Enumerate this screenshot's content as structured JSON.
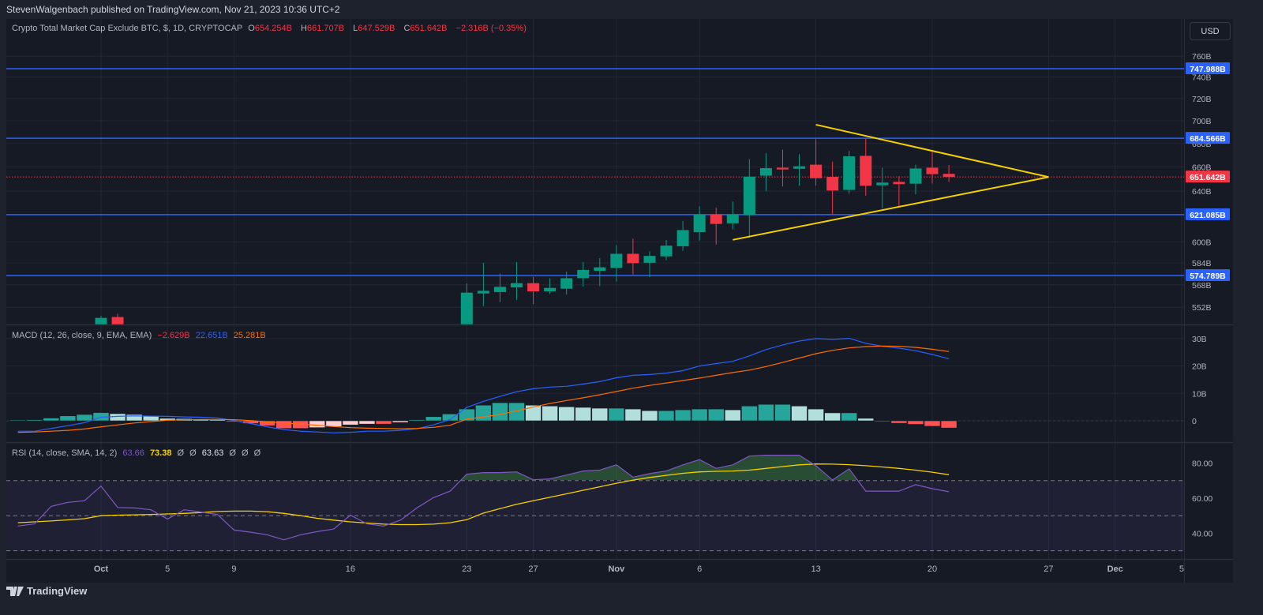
{
  "header": {
    "published": "StevenWalgenbach published on TradingView.com, Nov 21, 2023 10:36 UTC+2"
  },
  "symbol_legend": {
    "title": "Crypto Total Market Cap Exclude BTC, $, 1D, CRYPTOCAP",
    "o_label": "O",
    "o_value": "654.254B",
    "h_label": "H",
    "h_value": "661.707B",
    "l_label": "L",
    "l_value": "647.529B",
    "c_label": "C",
    "c_value": "651.642B",
    "change": "−2.316B (−0.35%)"
  },
  "currency_button": "USD",
  "macd_legend": {
    "title": "MACD (12, 26, close, 9, EMA, EMA)",
    "hist": "−2.629B",
    "macd": "22.651B",
    "signal": "25.281B"
  },
  "rsi_legend": {
    "title": "RSI (14, close, SMA, 14, 2)",
    "rsi": "63.66",
    "sma": "73.38",
    "n1": "Ø",
    "n2": "Ø",
    "extra": "63.63",
    "n3": "Ø",
    "n4": "Ø",
    "n5": "Ø"
  },
  "colors": {
    "up": "#089981",
    "down": "#f23645",
    "level": "#2962ff",
    "trend": "#f5d000",
    "macd": "#2962ff",
    "signal": "#ff6d00",
    "rsi": "#7e57c2",
    "rsi_sma": "#f5d000"
  },
  "logo_text": "TradingView",
  "chart_data": {
    "type": "candlestick",
    "price_axis": {
      "scale": "log",
      "ticks": [
        "760B",
        "740B",
        "720B",
        "700B",
        "680B",
        "660B",
        "640B",
        "600B",
        "584B",
        "568B",
        "552B"
      ],
      "tick_values": [
        760,
        740,
        720,
        700,
        680,
        660,
        640,
        600,
        584,
        568,
        552
      ]
    },
    "time_axis": {
      "ticks": [
        {
          "label": "Oct",
          "date": "2023-10-01"
        },
        {
          "label": "5",
          "date": "2023-10-05"
        },
        {
          "label": "9",
          "date": "2023-10-09"
        },
        {
          "label": "16",
          "date": "2023-10-16"
        },
        {
          "label": "23",
          "date": "2023-10-23"
        },
        {
          "label": "27",
          "date": "2023-10-27"
        },
        {
          "label": "Nov",
          "date": "2023-11-01"
        },
        {
          "label": "6",
          "date": "2023-11-06"
        },
        {
          "label": "13",
          "date": "2023-11-13"
        },
        {
          "label": "20",
          "date": "2023-11-20"
        },
        {
          "label": "27",
          "date": "2023-11-27"
        },
        {
          "label": "Dec",
          "date": "2023-12-01"
        },
        {
          "label": "5",
          "date": "2023-12-05"
        }
      ]
    },
    "candles": [
      {
        "date": "2023-10-01",
        "o": 540,
        "h": 546,
        "l": 535,
        "c": 544.6
      },
      {
        "date": "2023-10-02",
        "o": 545.2,
        "h": 547.5,
        "l": 530,
        "c": 538
      },
      {
        "date": "2023-10-23",
        "o": 530,
        "h": 569,
        "l": 525,
        "c": 562.4
      },
      {
        "date": "2023-10-24",
        "o": 561.8,
        "h": 584.2,
        "l": 552.9,
        "c": 563.7
      },
      {
        "date": "2023-10-25",
        "o": 562.8,
        "h": 576.3,
        "l": 555.7,
        "c": 566.6
      },
      {
        "date": "2023-10-26",
        "o": 566.2,
        "h": 584.8,
        "l": 557.3,
        "c": 569.2
      },
      {
        "date": "2023-10-27",
        "o": 569.2,
        "h": 573.8,
        "l": 554.2,
        "c": 563.3
      },
      {
        "date": "2023-10-28",
        "o": 563.3,
        "h": 572.8,
        "l": 561.4,
        "c": 565.8
      },
      {
        "date": "2023-10-29",
        "o": 565.2,
        "h": 577.6,
        "l": 561.0,
        "c": 572.8
      },
      {
        "date": "2023-10-30",
        "o": 572.8,
        "h": 584.8,
        "l": 566.8,
        "c": 578.9
      },
      {
        "date": "2023-10-31",
        "o": 578.2,
        "h": 587.6,
        "l": 567.1,
        "c": 580.8
      },
      {
        "date": "2023-11-01",
        "o": 580.4,
        "h": 597.5,
        "l": 570.4,
        "c": 590.9
      },
      {
        "date": "2023-11-02",
        "o": 590.9,
        "h": 602.4,
        "l": 575.5,
        "c": 583.9
      },
      {
        "date": "2023-11-03",
        "o": 584.2,
        "h": 592.8,
        "l": 573.6,
        "c": 589.3
      },
      {
        "date": "2023-11-04",
        "o": 589.0,
        "h": 601.4,
        "l": 586.1,
        "c": 597.1
      },
      {
        "date": "2023-11-05",
        "o": 596.6,
        "h": 616.0,
        "l": 593.1,
        "c": 609.0
      },
      {
        "date": "2023-11-06",
        "o": 607.4,
        "h": 627.7,
        "l": 601.0,
        "c": 621.3
      },
      {
        "date": "2023-11-07",
        "o": 621.3,
        "h": 626.6,
        "l": 598.0,
        "c": 613.8
      },
      {
        "date": "2023-11-08",
        "o": 614.3,
        "h": 631.6,
        "l": 609.6,
        "c": 621.3
      },
      {
        "date": "2023-11-09",
        "o": 620.7,
        "h": 666.6,
        "l": 603.2,
        "c": 651.9
      },
      {
        "date": "2023-11-10",
        "o": 652.7,
        "h": 671.5,
        "l": 639.9,
        "c": 659.0
      },
      {
        "date": "2023-11-11",
        "o": 659.4,
        "h": 674.7,
        "l": 643.8,
        "c": 657.9
      },
      {
        "date": "2023-11-12",
        "o": 658.5,
        "h": 670.9,
        "l": 644.4,
        "c": 660.6
      },
      {
        "date": "2023-11-13",
        "o": 661.9,
        "h": 683.7,
        "l": 644.4,
        "c": 650.6
      },
      {
        "date": "2023-11-14",
        "o": 651.7,
        "h": 664.5,
        "l": 621.3,
        "c": 640.5
      },
      {
        "date": "2023-11-15",
        "o": 641.0,
        "h": 673.7,
        "l": 638.0,
        "c": 669.0
      },
      {
        "date": "2023-11-16",
        "o": 669.4,
        "h": 684.1,
        "l": 636.3,
        "c": 644.4
      },
      {
        "date": "2023-11-17",
        "o": 644.8,
        "h": 659.4,
        "l": 626.0,
        "c": 647.0
      },
      {
        "date": "2023-11-18",
        "o": 647.6,
        "h": 652.3,
        "l": 627.3,
        "c": 645.7
      },
      {
        "date": "2023-11-19",
        "o": 646.1,
        "h": 661.9,
        "l": 637.4,
        "c": 658.7
      },
      {
        "date": "2023-11-20",
        "o": 659.4,
        "h": 674.1,
        "l": 646.3,
        "c": 654.0
      },
      {
        "date": "2023-11-21",
        "o": 654.254,
        "h": 661.707,
        "l": 647.529,
        "c": 651.642
      }
    ],
    "last_price": {
      "value": 651.642,
      "label": "651.642B"
    },
    "horizontal_levels": [
      {
        "value": 747.988,
        "label": "747.988B"
      },
      {
        "value": 684.566,
        "label": "684.566B"
      },
      {
        "value": 621.085,
        "label": "621.085B"
      },
      {
        "value": 574.789,
        "label": "574.789B"
      }
    ],
    "trendlines": [
      {
        "from": {
          "date": "2023-11-13",
          "price": 696.5
        },
        "to": {
          "date": "2023-11-27",
          "price": 651.6
        }
      },
      {
        "from": {
          "date": "2023-11-08",
          "price": 601.5
        },
        "to": {
          "date": "2023-11-27",
          "price": 651.6
        }
      }
    ],
    "macd": {
      "start_date": "2023-09-26",
      "axis_ticks": [
        "30B",
        "20B",
        "10B",
        "0"
      ],
      "axis_values": [
        30,
        20,
        10,
        0
      ],
      "histogram": [
        0.3,
        0.4,
        1.0,
        1.8,
        2.3,
        3.0,
        2.6,
        2.3,
        1.8,
        0.9,
        0.8,
        0.6,
        0.4,
        -0.4,
        -1.0,
        -1.8,
        -2.8,
        -2.8,
        -2.5,
        -2.1,
        -1.5,
        -1.2,
        -1.2,
        -0.6,
        0.4,
        1.5,
        2.5,
        4.3,
        5.7,
        6.6,
        6.6,
        5.7,
        5.4,
        5.1,
        4.9,
        4.6,
        4.6,
        4.3,
        3.7,
        3.7,
        4.0,
        4.3,
        4.3,
        4.0,
        5.4,
        6.0,
        6.0,
        5.4,
        4.3,
        2.9,
        2.9,
        0.9,
        -0.3,
        -0.9,
        -1.3,
        -2.0,
        -2.629
      ],
      "macd": [
        -3.8,
        -3.8,
        -2.8,
        -1.8,
        -0.7,
        1.3,
        1.6,
        1.8,
        1.7,
        1.6,
        1.4,
        1.3,
        1.0,
        0.1,
        -1.0,
        -2.2,
        -3.2,
        -3.8,
        -4.1,
        -4.4,
        -4.2,
        -3.8,
        -3.8,
        -3.5,
        -2.9,
        -1.5,
        0.5,
        4.9,
        7.1,
        8.9,
        10.6,
        11.7,
        12.3,
        12.6,
        13.4,
        14.3,
        15.7,
        16.6,
        16.9,
        17.4,
        18.3,
        20.0,
        20.9,
        21.7,
        23.7,
        26.0,
        27.7,
        29.1,
        30.0,
        29.7,
        30.1,
        28.3,
        27.2,
        26.5,
        25.6,
        24.2,
        22.651
      ],
      "signal": [
        -4.2,
        -4.1,
        -3.8,
        -3.5,
        -3.0,
        -2.2,
        -1.5,
        -0.8,
        -0.3,
        0.2,
        0.4,
        0.5,
        0.5,
        0.4,
        0.1,
        -0.4,
        -0.8,
        -1.2,
        -1.6,
        -2.1,
        -2.5,
        -2.7,
        -2.8,
        -2.9,
        -2.8,
        -2.4,
        -1.6,
        0.6,
        1.4,
        2.3,
        3.6,
        5.0,
        6.3,
        7.4,
        8.4,
        9.5,
        10.7,
        11.9,
        12.9,
        13.8,
        14.7,
        15.6,
        16.6,
        17.6,
        18.5,
        19.8,
        21.3,
        22.9,
        24.5,
        25.7,
        26.6,
        27.1,
        27.3,
        27.2,
        26.8,
        26.1,
        25.281
      ]
    },
    "rsi": {
      "start_date": "2023-09-26",
      "axis_ticks": [
        "80.00",
        "60.00",
        "40.00"
      ],
      "axis_values": [
        80,
        60,
        40
      ],
      "bands": [
        70,
        50,
        30
      ],
      "rsi": [
        44.1,
        45.3,
        55.3,
        57.6,
        58.5,
        66.9,
        54.7,
        54.4,
        53.4,
        48.1,
        53.4,
        52.1,
        50.7,
        41.8,
        40.6,
        39.1,
        36.2,
        39.1,
        40.9,
        42.4,
        50.3,
        45.3,
        44.1,
        47.4,
        54.4,
        60.3,
        64.0,
        73.7,
        74.6,
        74.6,
        75.0,
        70.5,
        71.0,
        73.2,
        75.5,
        76.0,
        79.0,
        72.0,
        74.0,
        75.5,
        79.0,
        82.0,
        77.0,
        79.0,
        84.0,
        84.5,
        84.5,
        84.5,
        78.5,
        70.4,
        76.7,
        64.0,
        64.0,
        64.0,
        67.7,
        65.4,
        63.66
      ],
      "sma": [
        46.0,
        46.5,
        47.0,
        47.6,
        48.3,
        50.0,
        50.3,
        50.5,
        50.7,
        51.0,
        51.3,
        51.8,
        52.4,
        52.6,
        52.6,
        52.3,
        51.3,
        50.0,
        48.5,
        47.5,
        46.5,
        45.8,
        45.2,
        44.9,
        44.9,
        45.2,
        46.0,
        47.7,
        51.5,
        54,
        56.5,
        58.5,
        60.5,
        62.5,
        64.5,
        66.5,
        68.5,
        70.3,
        71.8,
        73,
        74.2,
        75,
        75.3,
        75.5,
        76,
        77,
        78,
        79,
        79.5,
        79.4,
        79.1,
        78.5,
        77.8,
        77,
        76,
        74.8,
        73.38
      ]
    }
  }
}
